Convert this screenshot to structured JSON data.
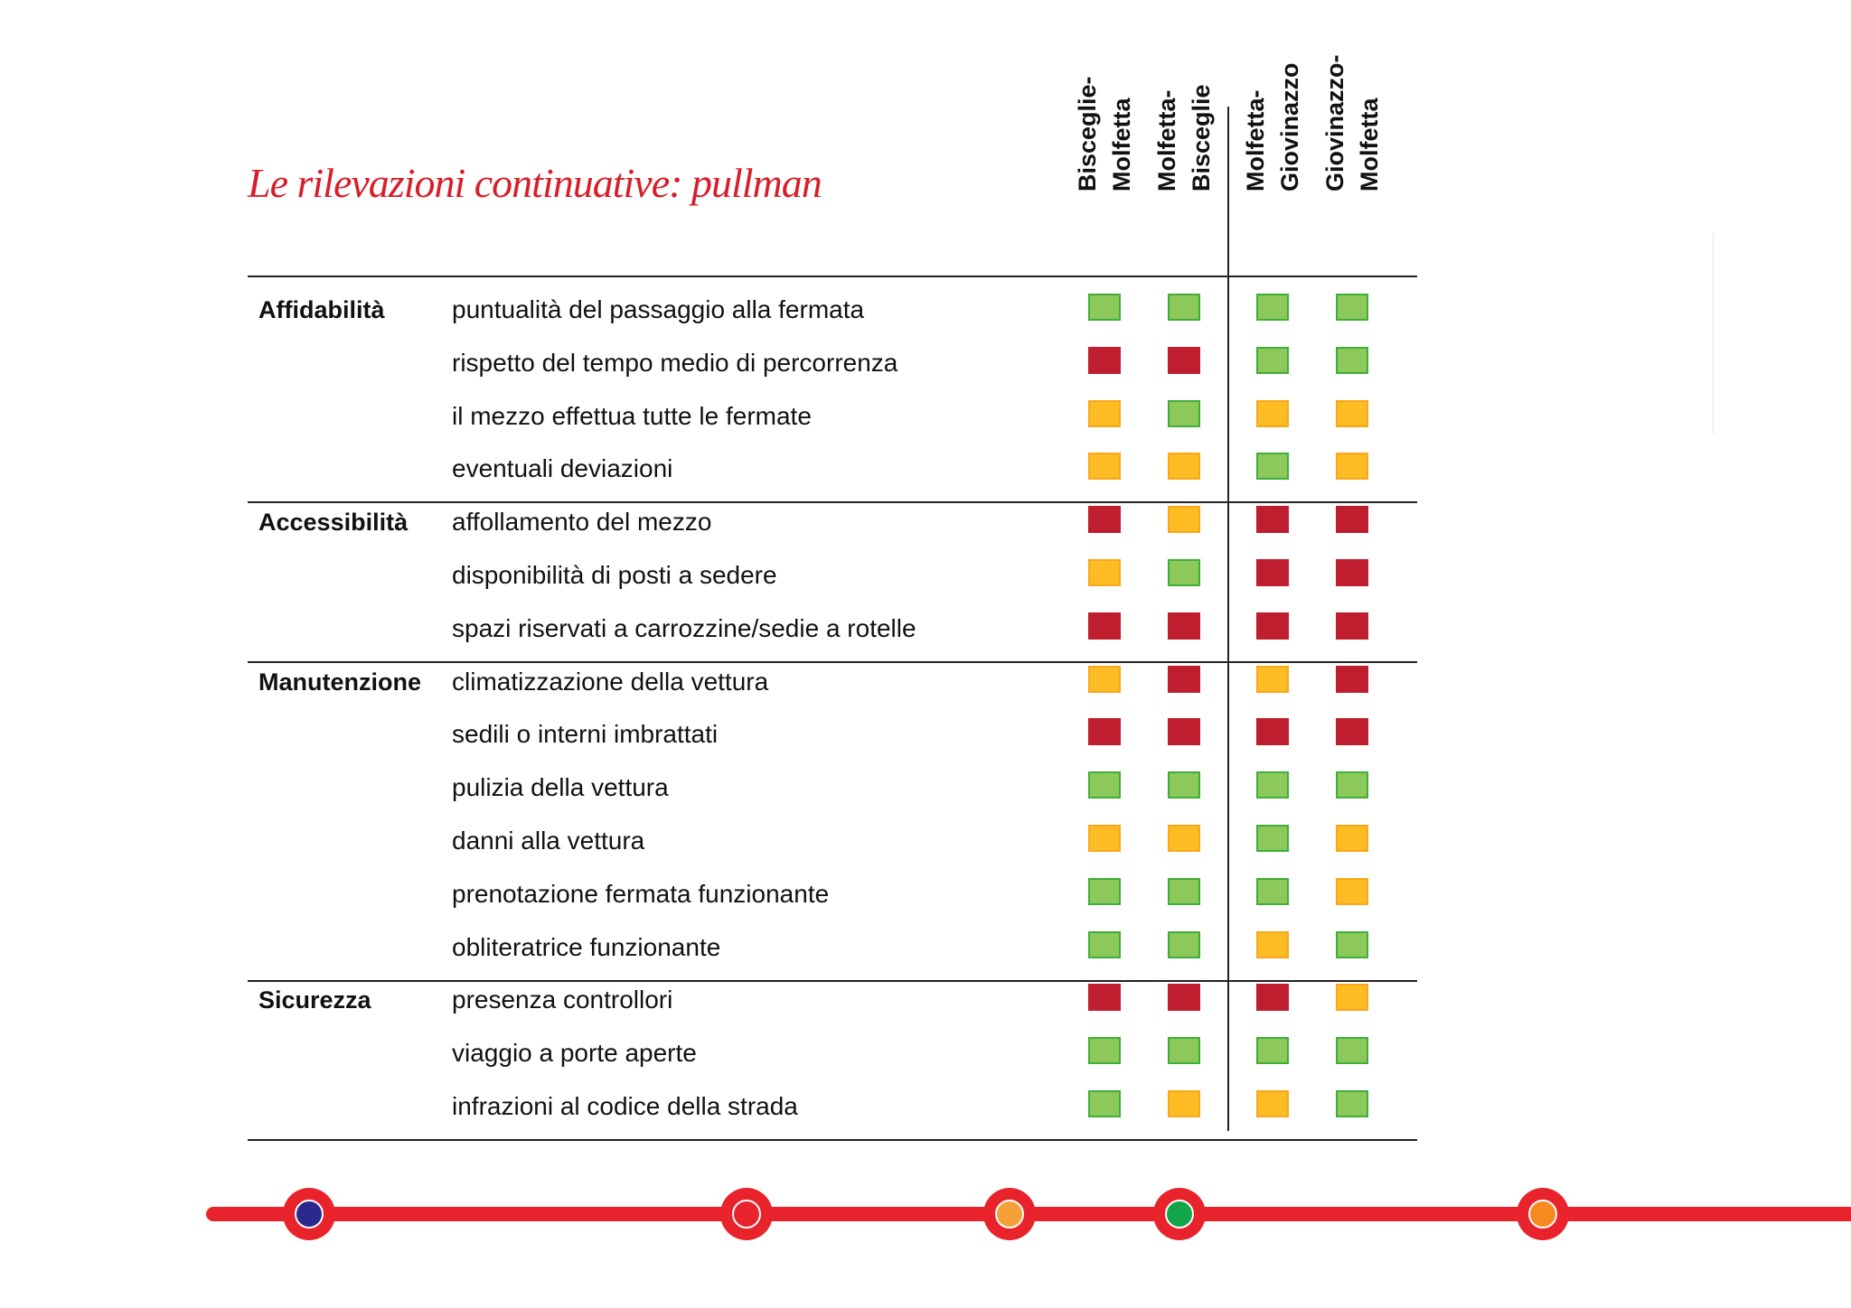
{
  "title": "Le rilevazioni continuative:  pullman",
  "routes": [
    "Bisceglie-\nMolfetta",
    "Molfetta-\nBisceglie",
    "Molfetta-\nGiovinazzo",
    "Giovinazzo-\nMolfetta"
  ],
  "categories": [
    {
      "name": "Affidabilità",
      "items": [
        {
          "label": "puntualità del passaggio alla fermata",
          "ratings": [
            "green",
            "green",
            "green",
            "green"
          ]
        },
        {
          "label": "rispetto del tempo medio di percorrenza",
          "ratings": [
            "red",
            "red",
            "green",
            "green"
          ]
        },
        {
          "label": "il mezzo effettua tutte le fermate",
          "ratings": [
            "amber",
            "green",
            "amber",
            "amber"
          ]
        },
        {
          "label": "eventuali deviazioni",
          "ratings": [
            "amber",
            "amber",
            "green",
            "amber"
          ]
        }
      ]
    },
    {
      "name": "Accessibilità",
      "items": [
        {
          "label": "affollamento del mezzo",
          "ratings": [
            "red",
            "amber",
            "red",
            "red"
          ]
        },
        {
          "label": "disponibilità di posti a sedere",
          "ratings": [
            "amber",
            "green",
            "red",
            "red"
          ]
        },
        {
          "label": "spazi riservati a carrozzine/sedie a rotelle",
          "ratings": [
            "red",
            "red",
            "red",
            "red"
          ]
        }
      ]
    },
    {
      "name": "Manutenzione",
      "items": [
        {
          "label": "climatizzazione della vettura",
          "ratings": [
            "amber",
            "red",
            "amber",
            "red"
          ]
        },
        {
          "label": "sedili o interni imbrattati",
          "ratings": [
            "red",
            "red",
            "red",
            "red"
          ]
        },
        {
          "label": "pulizia della vettura",
          "ratings": [
            "green",
            "green",
            "green",
            "green"
          ]
        },
        {
          "label": "danni alla vettura",
          "ratings": [
            "amber",
            "amber",
            "green",
            "amber"
          ]
        },
        {
          "label": "prenotazione fermata funzionante",
          "ratings": [
            "green",
            "green",
            "green",
            "amber"
          ]
        },
        {
          "label": "obliteratrice funzionante",
          "ratings": [
            "green",
            "green",
            "amber",
            "green"
          ]
        }
      ]
    },
    {
      "name": "Sicurezza",
      "items": [
        {
          "label": "presenza controllori",
          "ratings": [
            "red",
            "red",
            "red",
            "amber"
          ]
        },
        {
          "label": "viaggio a porte aperte",
          "ratings": [
            "green",
            "green",
            "green",
            "green"
          ]
        },
        {
          "label": "infrazioni al codice della strada",
          "ratings": [
            "green",
            "amber",
            "amber",
            "green"
          ]
        }
      ]
    }
  ],
  "colors": {
    "green": "#8cc85a",
    "red": "#bf1e2e",
    "amber": "#fdbb24",
    "accent": "#e8232c"
  },
  "metro_stops": [
    "#2b2a8c",
    "#e8232c",
    "#f5a13a",
    "#12a54a",
    "#f58a1f"
  ]
}
